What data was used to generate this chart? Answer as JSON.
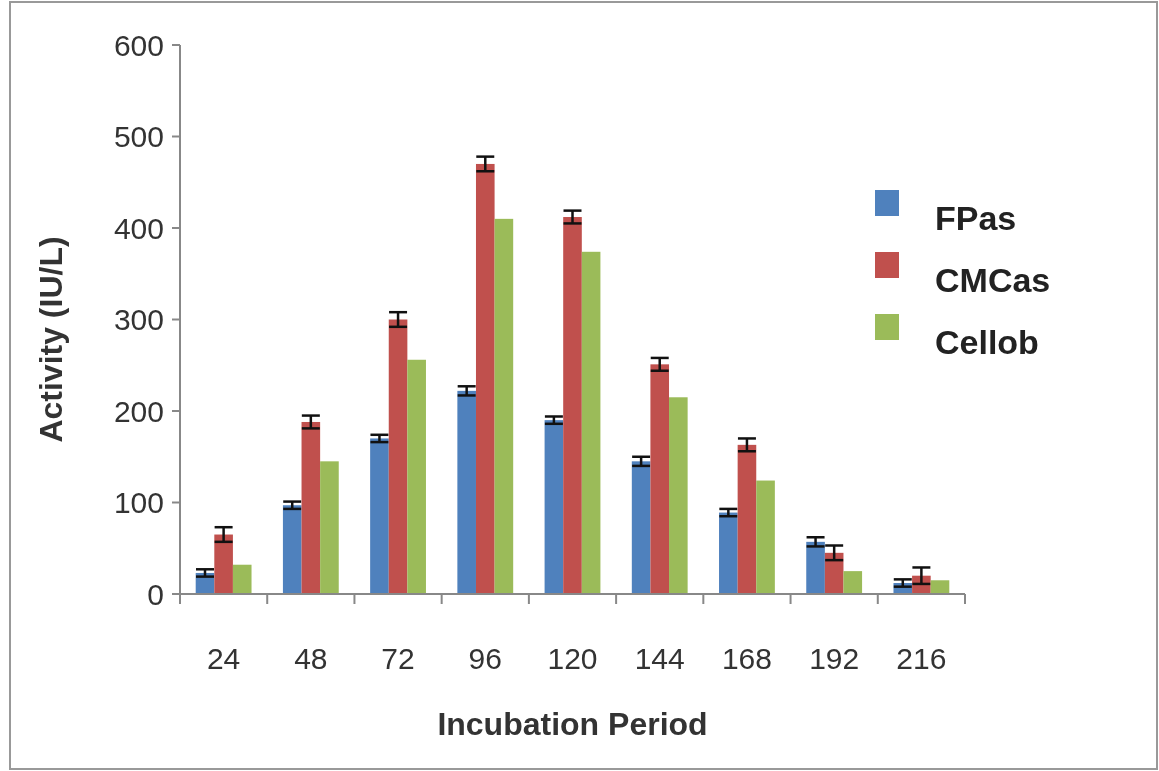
{
  "chart_data": {
    "type": "bar",
    "xlabel": "Incubation Period",
    "ylabel": "Activity (IU/L)",
    "categories": [
      "24",
      "48",
      "72",
      "96",
      "120",
      "144",
      "168",
      "192",
      "216"
    ],
    "series": [
      {
        "name": "FPas",
        "color": "#4f81bd",
        "values": [
          23,
          97,
          170,
          222,
          190,
          145,
          89,
          57,
          12
        ],
        "errors": [
          4,
          4,
          4,
          5,
          4,
          5,
          4,
          5,
          4
        ]
      },
      {
        "name": "CMCas",
        "color": "#c0504d",
        "values": [
          65,
          188,
          300,
          470,
          412,
          251,
          163,
          45,
          20
        ],
        "errors": [
          8,
          7,
          8,
          8,
          7,
          7,
          7,
          8,
          9
        ]
      },
      {
        "name": "Cellob",
        "color": "#9bbb59",
        "values": [
          32,
          145,
          256,
          410,
          374,
          215,
          124,
          25,
          15
        ]
      }
    ],
    "ylim": [
      0,
      600
    ],
    "yticks": [
      0,
      100,
      200,
      300,
      400,
      500,
      600
    ],
    "legend": "right",
    "grid": false
  }
}
